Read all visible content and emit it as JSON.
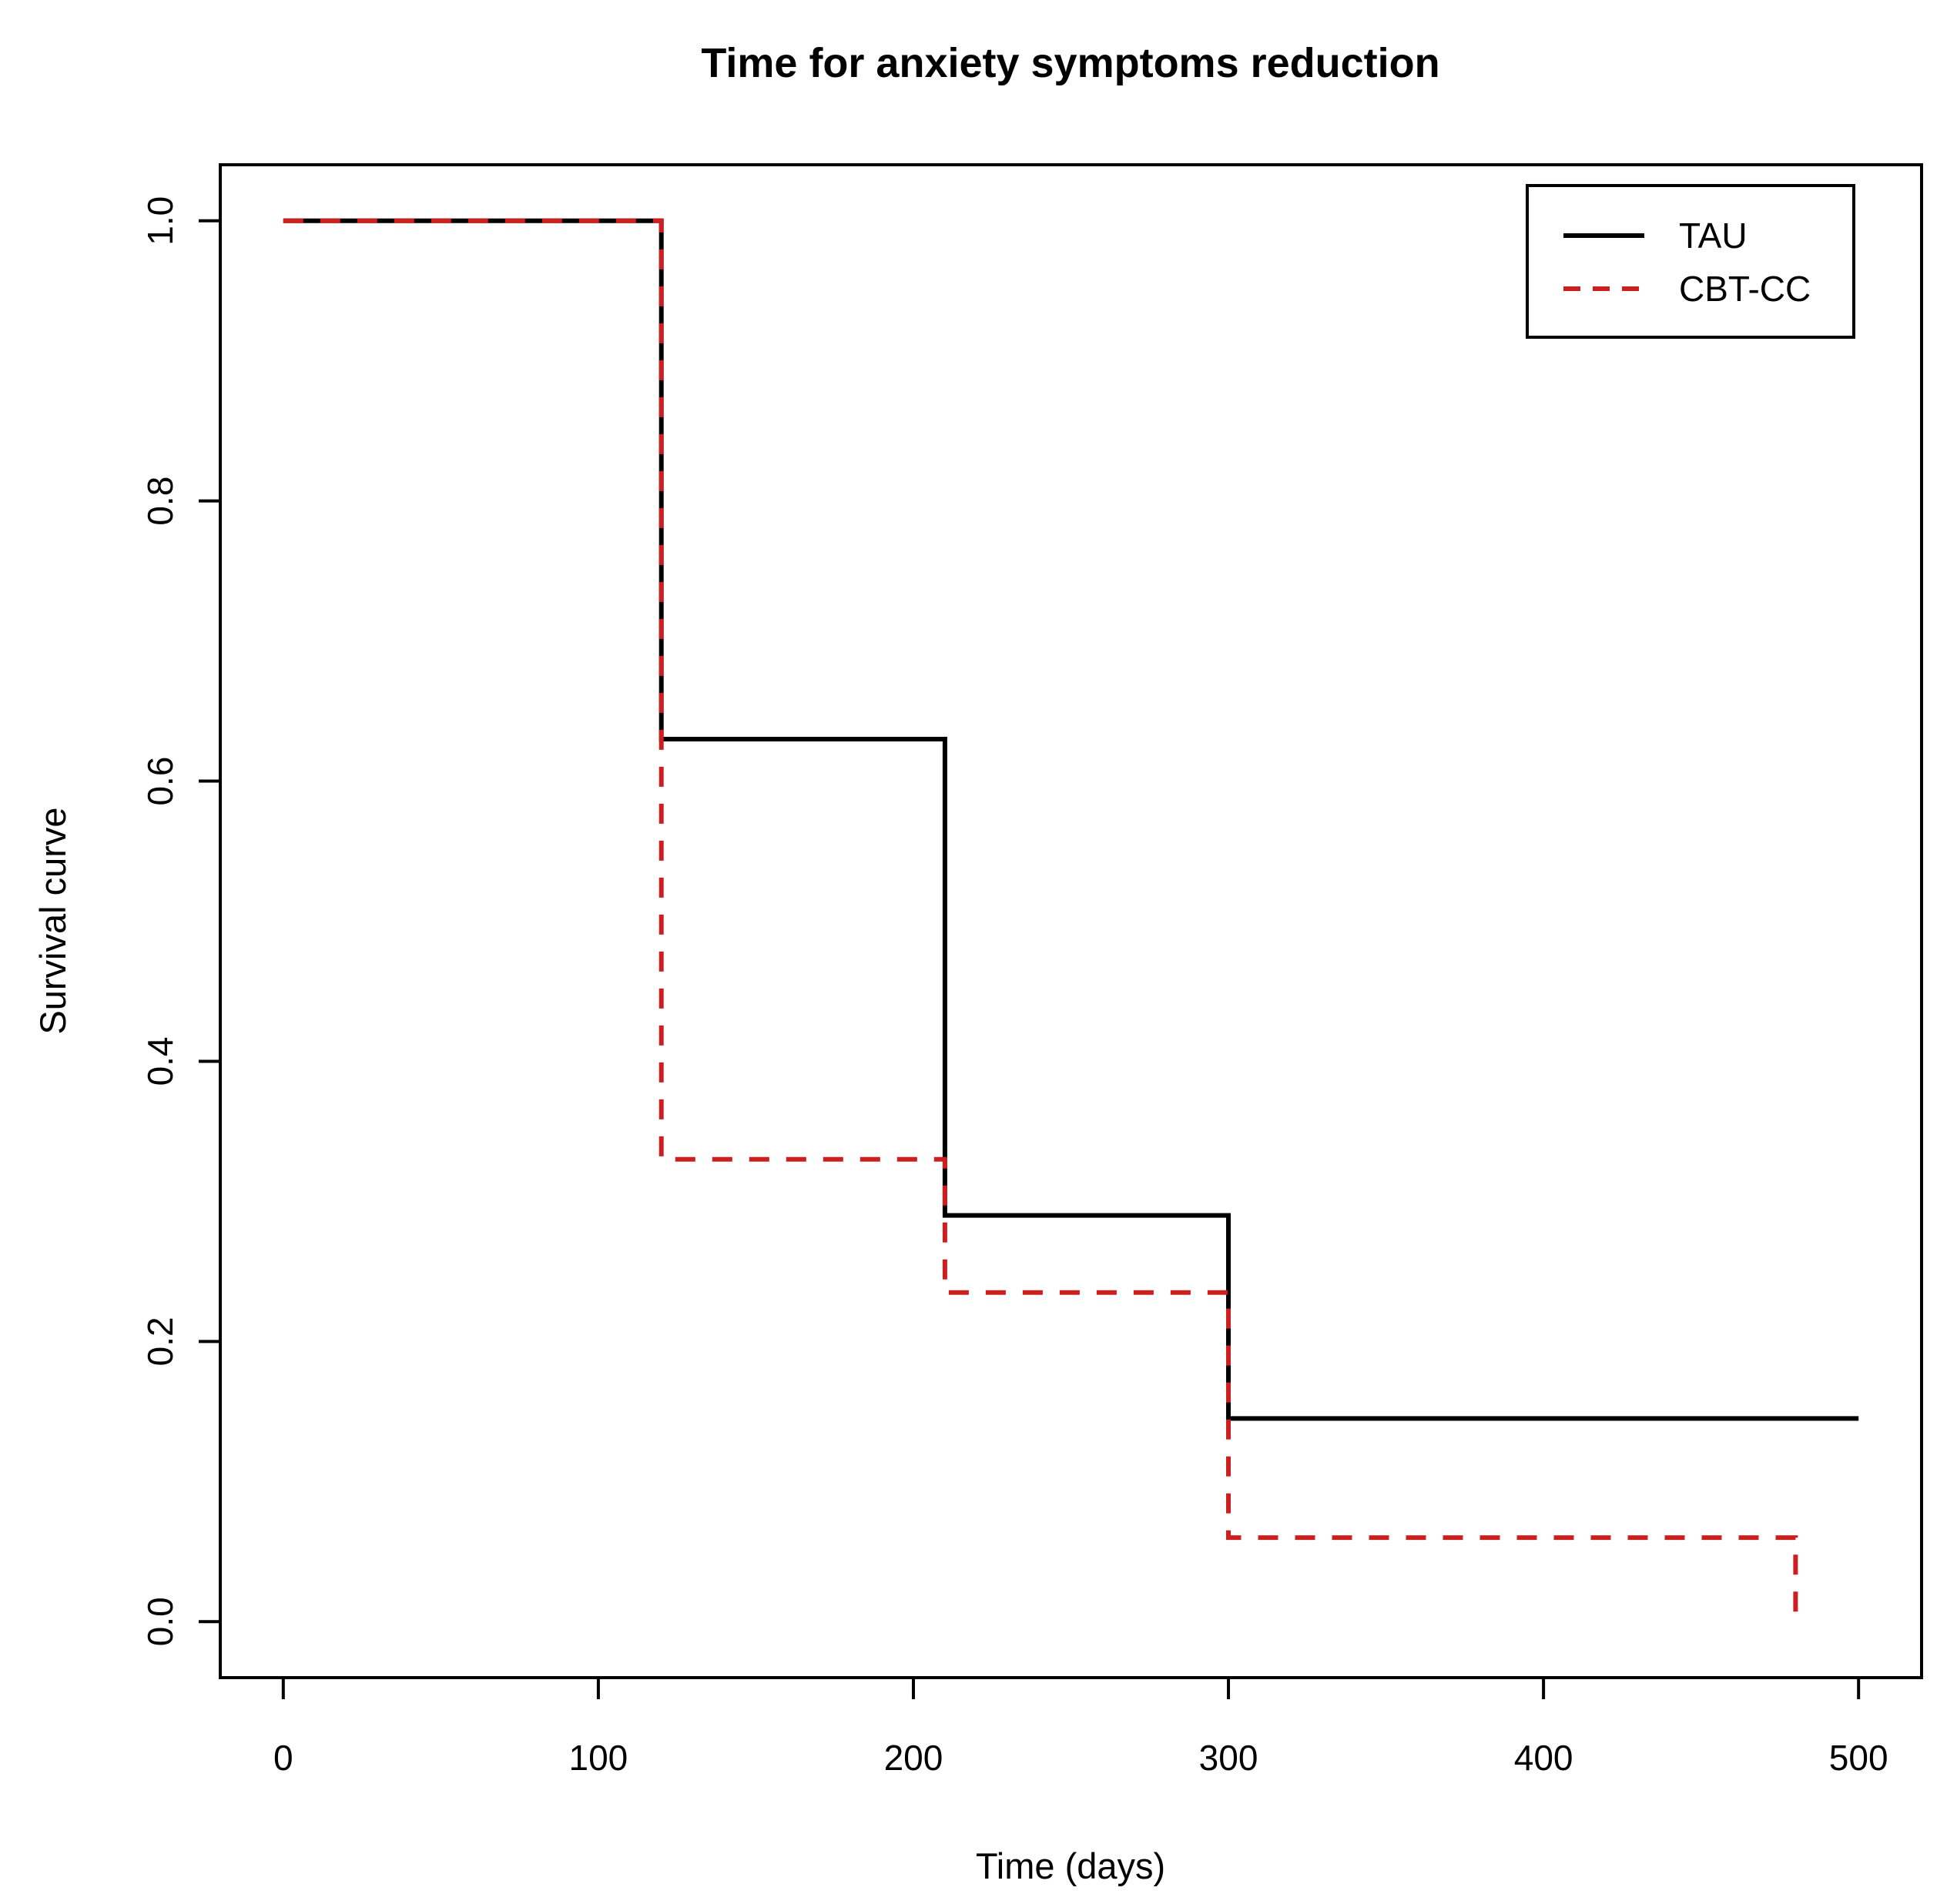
{
  "title": "Time for anxiety symptoms reduction",
  "colors": {
    "tau_line": "#000000",
    "cbt_cc_line": "#cc2020",
    "axis": "#000000",
    "background": "#ffffff"
  },
  "legend": {
    "items": [
      {
        "label": "TAU",
        "style": "solid"
      },
      {
        "label": "CBT-CC",
        "style": "dashed"
      }
    ]
  },
  "chart_data": {
    "type": "line",
    "subtype": "kaplan-meier-step",
    "title": "Time for anxiety symptoms reduction",
    "xlabel": "Time (days)",
    "ylabel": "Survival curve",
    "xlim": [
      0,
      500
    ],
    "ylim": [
      0,
      1
    ],
    "axis_padding_fraction": 0.04,
    "x_ticks": [
      "0",
      "100",
      "200",
      "300",
      "400",
      "500"
    ],
    "y_ticks": [
      "0.0",
      "0.2",
      "0.4",
      "0.6",
      "0.8",
      "1.0"
    ],
    "grid": false,
    "legend_position": "top-right",
    "series": [
      {
        "name": "TAU",
        "color": "#000000",
        "style": "solid",
        "points": [
          [
            0,
            1.0
          ],
          [
            120,
            1.0
          ],
          [
            120,
            0.63
          ],
          [
            210,
            0.63
          ],
          [
            210,
            0.29
          ],
          [
            300,
            0.29
          ],
          [
            300,
            0.145
          ],
          [
            500,
            0.145
          ]
        ]
      },
      {
        "name": "CBT-CC",
        "color": "#cc2020",
        "style": "dashed",
        "points": [
          [
            0,
            1.0
          ],
          [
            120,
            1.0
          ],
          [
            120,
            0.33
          ],
          [
            210,
            0.33
          ],
          [
            210,
            0.235
          ],
          [
            300,
            0.235
          ],
          [
            300,
            0.06
          ],
          [
            480,
            0.06
          ],
          [
            480,
            0.005
          ]
        ]
      }
    ]
  }
}
